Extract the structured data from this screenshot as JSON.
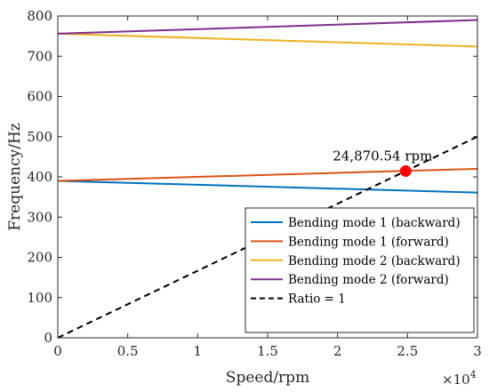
{
  "chart_data": {
    "type": "line",
    "xlabel": "Speed/rpm",
    "ylabel": "Frequency/Hz",
    "x_exponent_base": "×10",
    "x_exponent_power": "4",
    "xlim": [
      0,
      30000
    ],
    "ylim": [
      0,
      800
    ],
    "x_ticks": [
      0,
      5000,
      10000,
      15000,
      20000,
      25000,
      30000
    ],
    "x_tick_labels": [
      "0",
      "0.5",
      "1",
      "1.5",
      "2",
      "2.5",
      "3"
    ],
    "y_ticks": [
      0,
      100,
      200,
      300,
      400,
      500,
      600,
      700,
      800
    ],
    "y_tick_labels": [
      "0",
      "100",
      "200",
      "300",
      "400",
      "500",
      "600",
      "700",
      "800"
    ],
    "grid": false,
    "legend_position": "bottom-right",
    "series": [
      {
        "name": "Bending mode 1 (backward)",
        "color": "#0072BD",
        "style": "solid",
        "x": [
          0,
          30000
        ],
        "y": [
          390,
          361
        ]
      },
      {
        "name": "Bending mode 1 (forward)",
        "color": "#D95319",
        "style": "solid",
        "x": [
          0,
          30000
        ],
        "y": [
          390,
          420
        ]
      },
      {
        "name": "Bending mode 2 (backward)",
        "color": "#EDB120",
        "style": "solid",
        "x": [
          0,
          30000
        ],
        "y": [
          756,
          724
        ]
      },
      {
        "name": "Bending mode 2 (forward)",
        "color": "#7E2F8E",
        "style": "solid",
        "x": [
          0,
          30000
        ],
        "y": [
          756,
          790
        ]
      },
      {
        "name": "Ratio = 1",
        "color": "#000000",
        "style": "dashed",
        "x": [
          0,
          30000
        ],
        "y": [
          0,
          500
        ]
      }
    ],
    "annotations": [
      {
        "text": "24,870.54 rpm",
        "x": 24870.54,
        "y": 414.5,
        "marker_color": "#FF0000"
      }
    ]
  }
}
